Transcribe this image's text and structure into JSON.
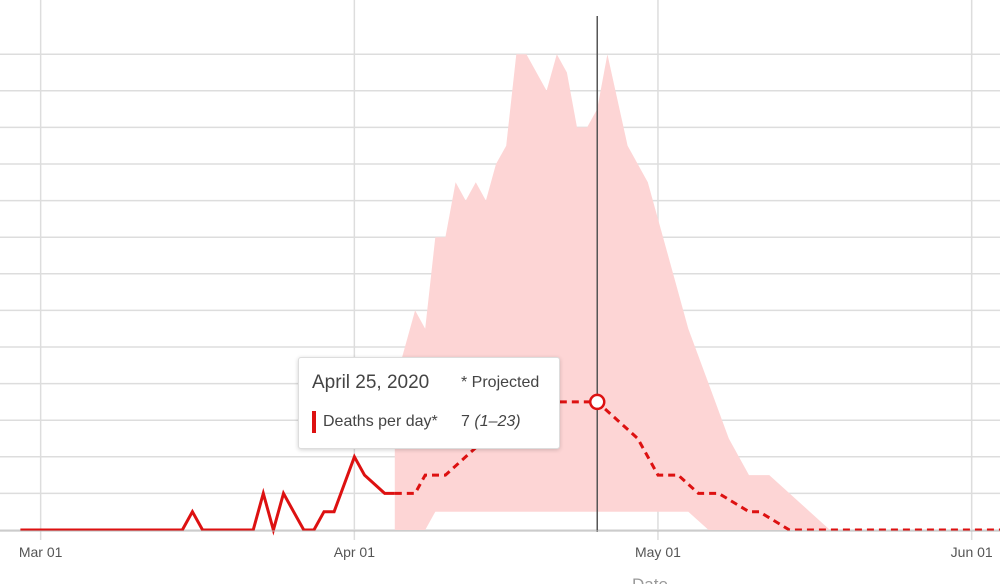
{
  "chart_data": {
    "type": "line",
    "xlabel": "Date",
    "x_ticks": [
      "Mar 01",
      "Apr 01",
      "May 01",
      "Jun 01"
    ],
    "ylim": [
      0,
      27
    ],
    "grid": true,
    "actual": {
      "dates": [
        "2020-02-28",
        "2020-03-15",
        "2020-03-16",
        "2020-03-17",
        "2020-03-22",
        "2020-03-23",
        "2020-03-24",
        "2020-03-25",
        "2020-03-26",
        "2020-03-27",
        "2020-03-28",
        "2020-03-29",
        "2020-03-30",
        "2020-04-01",
        "2020-04-02",
        "2020-04-04",
        "2020-04-05"
      ],
      "values": [
        0,
        0,
        1,
        0,
        0,
        2,
        0,
        2,
        1,
        0,
        0,
        1,
        1,
        4,
        3,
        2,
        2
      ]
    },
    "projected": {
      "dates": [
        "2020-04-05",
        "2020-04-07",
        "2020-04-08",
        "2020-04-10",
        "2020-04-12",
        "2020-04-14",
        "2020-04-16",
        "2020-04-18",
        "2020-04-20",
        "2020-04-22",
        "2020-04-25",
        "2020-04-27",
        "2020-04-29",
        "2020-05-01",
        "2020-05-03",
        "2020-05-05",
        "2020-05-07",
        "2020-05-10",
        "2020-05-11",
        "2020-05-14",
        "2020-05-16",
        "2020-06-07"
      ],
      "values": [
        2,
        2,
        3,
        3,
        4,
        5,
        6,
        7,
        7,
        7,
        7,
        6,
        5,
        3,
        3,
        2,
        2,
        1,
        1,
        0,
        0,
        0
      ]
    },
    "band": {
      "dates": [
        "2020-04-05",
        "2020-04-07",
        "2020-04-08",
        "2020-04-09",
        "2020-04-10",
        "2020-04-11",
        "2020-04-12",
        "2020-04-13",
        "2020-04-14",
        "2020-04-15",
        "2020-04-16",
        "2020-04-17",
        "2020-04-18",
        "2020-04-19",
        "2020-04-20",
        "2020-04-21",
        "2020-04-22",
        "2020-04-23",
        "2020-04-24",
        "2020-04-25",
        "2020-04-26",
        "2020-04-28",
        "2020-04-30",
        "2020-05-02",
        "2020-05-04",
        "2020-05-06",
        "2020-05-08",
        "2020-05-10",
        "2020-05-12",
        "2020-05-14",
        "2020-05-16",
        "2020-05-18"
      ],
      "upper": [
        8,
        12,
        11,
        16,
        16,
        19,
        18,
        19,
        18,
        20,
        21,
        26,
        26,
        25,
        24,
        26,
        25,
        22,
        22,
        23,
        26,
        21,
        19,
        15,
        11,
        8,
        5,
        3,
        3,
        2,
        1,
        0
      ],
      "lower": [
        0,
        0,
        0,
        1,
        1,
        1,
        1,
        1,
        1,
        1,
        1,
        1,
        1,
        1,
        1,
        1,
        1,
        1,
        1,
        1,
        1,
        1,
        1,
        1,
        1,
        0,
        0,
        0,
        0,
        0,
        0,
        0
      ]
    },
    "highlight": {
      "date": "2020-04-25",
      "value": 7
    },
    "colors": {
      "line": "#dd1111",
      "band": "#fdd5d5",
      "grid": "#dddddd",
      "cursor": "#555555"
    }
  },
  "tooltip": {
    "date": "April 25, 2020",
    "projected_note": "* Projected",
    "series_label": "Deaths per day*",
    "value": "7",
    "range": "(1–23)"
  }
}
